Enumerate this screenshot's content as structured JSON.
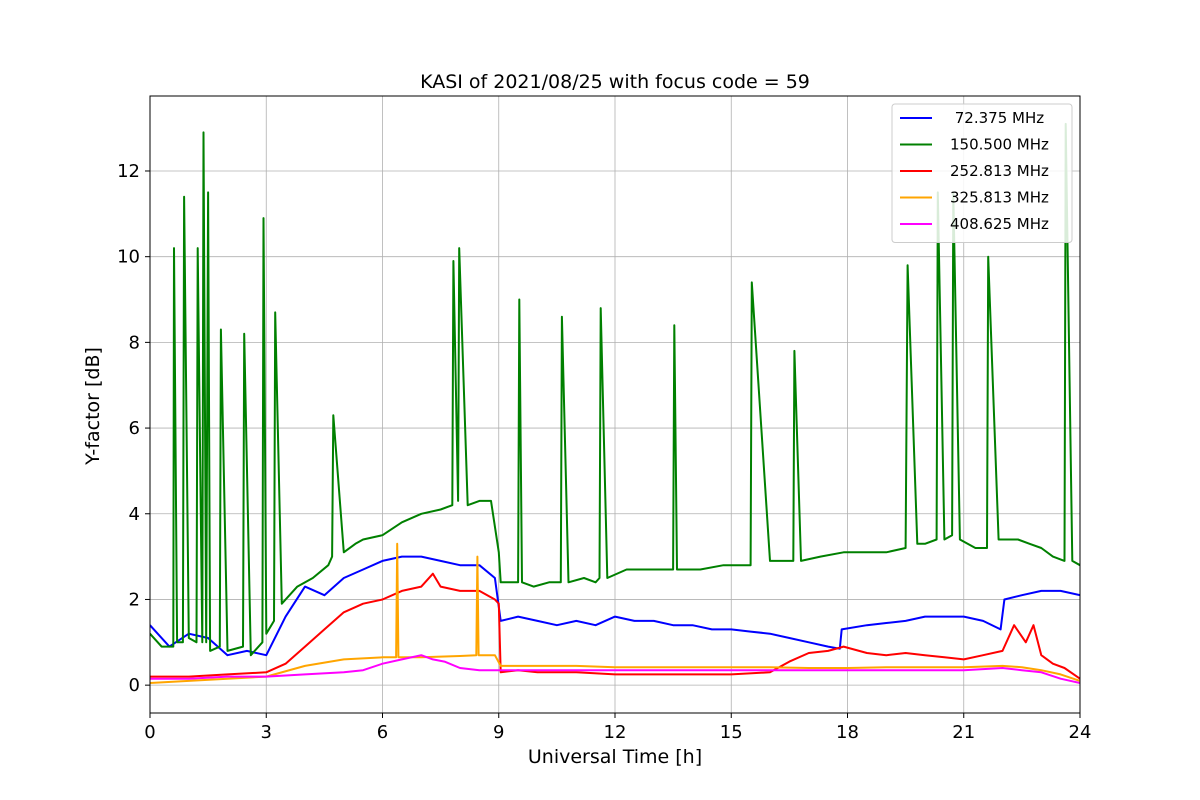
{
  "chart_data": {
    "type": "line",
    "title": "KASI of 2021/08/25 with focus code = 59",
    "xlabel": "Universal Time [h]",
    "ylabel": "Y-factor [dB]",
    "xlim": [
      0,
      24
    ],
    "ylim": [
      -0.65,
      13.75
    ],
    "xticks": [
      0,
      3,
      6,
      9,
      12,
      15,
      18,
      21,
      24
    ],
    "yticks": [
      0,
      2,
      4,
      6,
      8,
      10,
      12
    ],
    "grid": true,
    "legend_position": "top-right",
    "series": [
      {
        "name": " 72.375 MHz",
        "color": "#0000ff",
        "x": [
          0,
          0.5,
          1,
          1.5,
          2,
          2.5,
          3,
          3.5,
          4,
          4.5,
          5,
          5.5,
          6,
          6.5,
          7,
          7.5,
          8,
          8.5,
          8.9,
          9.05,
          9.5,
          10,
          10.5,
          11,
          11.5,
          12,
          12.5,
          13,
          13.5,
          14,
          14.5,
          15,
          15.5,
          16,
          16.5,
          17,
          17.5,
          17.8,
          17.85,
          18.5,
          19,
          19.5,
          20,
          20.5,
          21,
          21.5,
          21.95,
          22.05,
          22.5,
          23,
          23.5,
          24
        ],
        "y": [
          1.4,
          0.9,
          1.2,
          1.1,
          0.7,
          0.8,
          0.7,
          1.6,
          2.3,
          2.1,
          2.5,
          2.7,
          2.9,
          3.0,
          3.0,
          2.9,
          2.8,
          2.8,
          2.5,
          1.5,
          1.6,
          1.5,
          1.4,
          1.5,
          1.4,
          1.6,
          1.5,
          1.5,
          1.4,
          1.4,
          1.3,
          1.3,
          1.25,
          1.2,
          1.1,
          1.0,
          0.9,
          0.85,
          1.3,
          1.4,
          1.45,
          1.5,
          1.6,
          1.6,
          1.6,
          1.5,
          1.3,
          2.0,
          2.1,
          2.2,
          2.2,
          2.1
        ]
      },
      {
        "name": "150.500 MHz",
        "color": "#008000",
        "x": [
          0,
          0.3,
          0.6,
          0.62,
          0.7,
          0.85,
          0.88,
          1.0,
          1.2,
          1.23,
          1.35,
          1.38,
          1.45,
          1.5,
          1.55,
          1.8,
          1.83,
          2.0,
          2.4,
          2.43,
          2.6,
          2.9,
          2.93,
          3.0,
          3.2,
          3.23,
          3.4,
          3.8,
          4.2,
          4.6,
          4.7,
          4.73,
          5.0,
          5.3,
          5.5,
          6.0,
          6.5,
          7.0,
          7.5,
          7.8,
          7.83,
          7.95,
          7.98,
          8.2,
          8.5,
          8.8,
          9.0,
          9.05,
          9.5,
          9.53,
          9.6,
          9.9,
          10.3,
          10.6,
          10.63,
          10.8,
          11.2,
          11.5,
          11.6,
          11.63,
          11.8,
          12.3,
          12.8,
          13.5,
          13.53,
          13.6,
          14.2,
          14.8,
          15.2,
          15.5,
          15.53,
          16.0,
          16.6,
          16.63,
          16.8,
          17.3,
          17.9,
          18.5,
          19.0,
          19.5,
          19.55,
          19.8,
          20.0,
          20.3,
          20.33,
          20.5,
          20.7,
          20.73,
          20.9,
          21.3,
          21.6,
          21.63,
          21.9,
          22.4,
          22.7,
          23.0,
          23.3,
          23.6,
          23.63,
          23.8,
          24.0
        ],
        "y": [
          1.2,
          0.9,
          0.9,
          10.2,
          1.0,
          1.0,
          11.4,
          1.1,
          1.0,
          10.2,
          1.0,
          12.9,
          1.0,
          11.5,
          0.8,
          0.9,
          8.3,
          0.8,
          0.9,
          8.2,
          0.7,
          1.0,
          10.9,
          1.2,
          1.5,
          8.7,
          1.9,
          2.3,
          2.5,
          2.8,
          3.0,
          6.3,
          3.1,
          3.3,
          3.4,
          3.5,
          3.8,
          4.0,
          4.1,
          4.2,
          9.9,
          4.3,
          10.2,
          4.2,
          4.3,
          4.3,
          3.1,
          2.4,
          2.4,
          9.0,
          2.4,
          2.3,
          2.4,
          2.4,
          8.6,
          2.4,
          2.5,
          2.4,
          2.5,
          8.8,
          2.5,
          2.7,
          2.7,
          2.7,
          8.4,
          2.7,
          2.7,
          2.8,
          2.8,
          2.8,
          9.4,
          2.9,
          2.9,
          7.8,
          2.9,
          3.0,
          3.1,
          3.1,
          3.1,
          3.2,
          9.8,
          3.3,
          3.3,
          3.4,
          11.5,
          3.4,
          3.5,
          11.5,
          3.4,
          3.2,
          3.2,
          10.0,
          3.4,
          3.4,
          3.3,
          3.2,
          3.0,
          2.9,
          13.1,
          2.9,
          2.8
        ]
      },
      {
        "name": "252.813 MHz",
        "color": "#ff0000",
        "x": [
          0,
          1,
          2,
          3,
          3.5,
          4,
          4.5,
          5,
          5.5,
          6,
          6.5,
          7,
          7.3,
          7.5,
          8,
          8.5,
          8.9,
          9.0,
          9.05,
          9.5,
          10,
          11,
          12,
          13,
          14,
          15,
          16,
          16.5,
          17,
          17.5,
          17.9,
          18.5,
          19,
          19.5,
          20,
          20.5,
          21,
          21.5,
          22,
          22.3,
          22.6,
          22.8,
          23.0,
          23.3,
          23.6,
          24
        ],
        "y": [
          0.2,
          0.2,
          0.25,
          0.3,
          0.5,
          0.9,
          1.3,
          1.7,
          1.9,
          2.0,
          2.2,
          2.3,
          2.6,
          2.3,
          2.2,
          2.2,
          2.0,
          1.9,
          0.3,
          0.35,
          0.3,
          0.3,
          0.25,
          0.25,
          0.25,
          0.25,
          0.3,
          0.55,
          0.75,
          0.8,
          0.9,
          0.75,
          0.7,
          0.75,
          0.7,
          0.65,
          0.6,
          0.7,
          0.8,
          1.4,
          1.0,
          1.4,
          0.7,
          0.5,
          0.4,
          0.15
        ]
      },
      {
        "name": "325.813 MHz",
        "color": "#ffa500",
        "x": [
          0,
          1,
          2,
          3,
          4,
          5,
          6,
          6.35,
          6.38,
          6.41,
          7,
          8,
          8.42,
          8.45,
          8.48,
          8.9,
          9.05,
          10,
          11,
          12,
          13,
          14,
          15,
          16,
          17,
          18,
          19,
          20,
          21,
          22,
          22.5,
          23,
          23.5,
          24
        ],
        "y": [
          0.05,
          0.1,
          0.15,
          0.2,
          0.45,
          0.6,
          0.65,
          0.65,
          3.3,
          0.65,
          0.65,
          0.68,
          0.7,
          3.0,
          0.7,
          0.7,
          0.45,
          0.45,
          0.45,
          0.42,
          0.42,
          0.42,
          0.42,
          0.42,
          0.4,
          0.4,
          0.42,
          0.42,
          0.42,
          0.45,
          0.42,
          0.35,
          0.25,
          0.1
        ]
      },
      {
        "name": "408.625 MHz",
        "color": "#ff00ff",
        "x": [
          0,
          1,
          2,
          3,
          4,
          5,
          5.5,
          6,
          6.5,
          7,
          7.3,
          7.6,
          8,
          8.5,
          9,
          10,
          11,
          12,
          13,
          14,
          15,
          16,
          17,
          18,
          19,
          20,
          21,
          22,
          22.5,
          23,
          23.5,
          24
        ],
        "y": [
          0.15,
          0.15,
          0.2,
          0.2,
          0.25,
          0.3,
          0.35,
          0.5,
          0.6,
          0.7,
          0.6,
          0.55,
          0.4,
          0.35,
          0.35,
          0.35,
          0.35,
          0.35,
          0.35,
          0.35,
          0.35,
          0.35,
          0.35,
          0.35,
          0.35,
          0.35,
          0.35,
          0.4,
          0.35,
          0.3,
          0.15,
          0.05
        ]
      }
    ]
  }
}
